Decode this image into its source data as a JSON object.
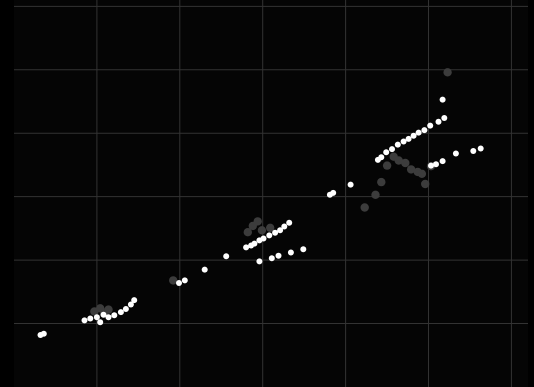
{
  "colors": {
    "background": "#000000",
    "panel": "#050505",
    "grid": "#333333",
    "bright_point": "#ffffff",
    "dim_point": "#3c3c3c"
  },
  "chart_data": {
    "type": "scatter",
    "grid": true,
    "xlim": [
      0,
      6.2
    ],
    "ylim": [
      0,
      6.1
    ],
    "series": [
      {
        "color": "#3c3c3c",
        "points": [
          [
            0.97,
            1.19
          ],
          [
            1.04,
            1.24
          ],
          [
            1.09,
            1.16
          ],
          [
            1.14,
            1.22
          ],
          [
            1.92,
            1.68
          ],
          [
            2.82,
            2.44
          ],
          [
            2.88,
            2.54
          ],
          [
            2.94,
            2.61
          ],
          [
            2.99,
            2.47
          ],
          [
            3.09,
            2.51
          ],
          [
            4.23,
            2.83
          ],
          [
            4.36,
            3.03
          ],
          [
            4.43,
            3.23
          ],
          [
            4.5,
            3.49
          ],
          [
            4.58,
            3.63
          ],
          [
            4.64,
            3.57
          ],
          [
            4.72,
            3.53
          ],
          [
            4.79,
            3.43
          ],
          [
            4.87,
            3.39
          ],
          [
            4.92,
            3.36
          ],
          [
            4.96,
            3.2
          ],
          [
            5.03,
            3.48
          ],
          [
            5.23,
            4.96
          ]
        ]
      },
      {
        "color": "#ffffff",
        "points": [
          [
            0.32,
            0.82
          ],
          [
            0.36,
            0.84
          ],
          [
            0.85,
            1.05
          ],
          [
            0.92,
            1.08
          ],
          [
            1.0,
            1.1
          ],
          [
            1.04,
            1.02
          ],
          [
            1.08,
            1.14
          ],
          [
            1.14,
            1.1
          ],
          [
            1.21,
            1.13
          ],
          [
            1.29,
            1.18
          ],
          [
            1.35,
            1.23
          ],
          [
            1.41,
            1.3
          ],
          [
            1.45,
            1.37
          ],
          [
            1.99,
            1.64
          ],
          [
            2.06,
            1.68
          ],
          [
            2.3,
            1.85
          ],
          [
            2.56,
            2.06
          ],
          [
            2.8,
            2.2
          ],
          [
            2.86,
            2.23
          ],
          [
            2.9,
            2.26
          ],
          [
            2.96,
            2.31
          ],
          [
            3.01,
            2.34
          ],
          [
            3.08,
            2.39
          ],
          [
            3.15,
            2.43
          ],
          [
            3.21,
            2.47
          ],
          [
            3.26,
            2.53
          ],
          [
            3.32,
            2.59
          ],
          [
            2.96,
            1.98
          ],
          [
            3.11,
            2.03
          ],
          [
            3.19,
            2.07
          ],
          [
            3.34,
            2.12
          ],
          [
            3.49,
            2.17
          ],
          [
            3.81,
            3.03
          ],
          [
            3.85,
            3.06
          ],
          [
            4.06,
            3.19
          ],
          [
            4.39,
            3.58
          ],
          [
            4.43,
            3.62
          ],
          [
            4.49,
            3.7
          ],
          [
            4.56,
            3.75
          ],
          [
            4.63,
            3.82
          ],
          [
            4.7,
            3.87
          ],
          [
            4.76,
            3.91
          ],
          [
            4.82,
            3.96
          ],
          [
            4.88,
            4.01
          ],
          [
            4.95,
            4.05
          ],
          [
            5.02,
            4.12
          ],
          [
            5.12,
            4.18
          ],
          [
            5.19,
            4.24
          ],
          [
            5.17,
            4.53
          ],
          [
            5.03,
            3.49
          ],
          [
            5.09,
            3.51
          ],
          [
            5.17,
            3.56
          ],
          [
            5.33,
            3.68
          ],
          [
            5.54,
            3.72
          ],
          [
            5.63,
            3.76
          ]
        ]
      }
    ]
  }
}
